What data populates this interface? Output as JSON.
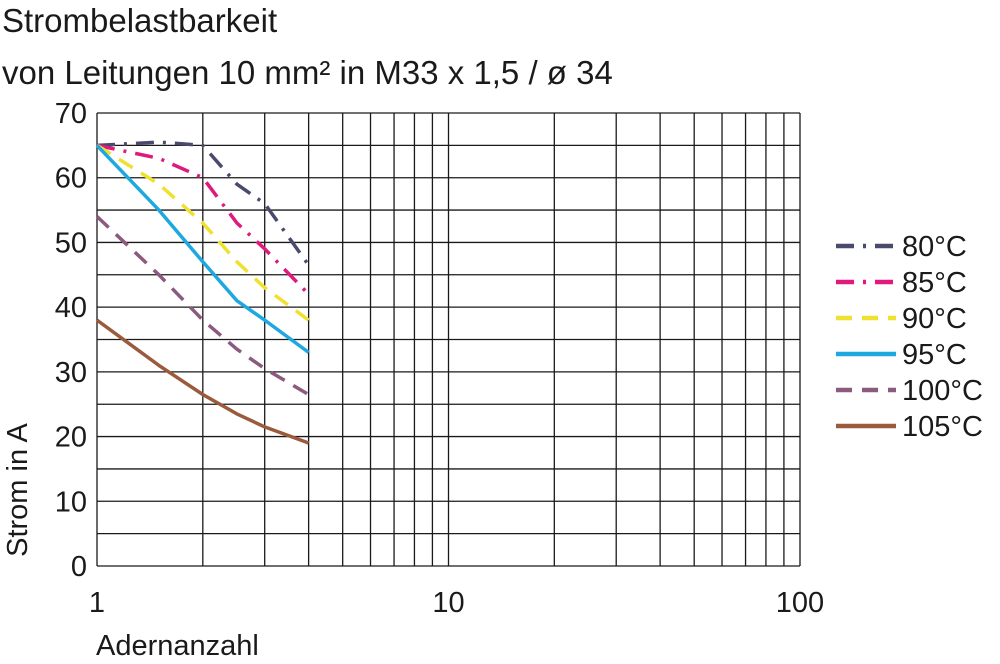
{
  "chart_data": {
    "type": "line",
    "title": "Strombelastbarkeit",
    "subtitle": "von Leitungen 10 mm² in M33 x 1,5 / ø 34",
    "xlabel": "Adernanzahl",
    "ylabel": "Strom in A",
    "xscale": "log",
    "xlim": [
      1,
      100
    ],
    "ylim": [
      0,
      70
    ],
    "xticks": [
      "1",
      "10",
      "100"
    ],
    "yticks": [
      "0",
      "10",
      "20",
      "30",
      "40",
      "50",
      "60",
      "70"
    ],
    "grid": true,
    "legend_position": "right",
    "series": [
      {
        "name": "80°C",
        "color": "#4a4a6e",
        "dash": "dash-dot",
        "x": [
          1,
          1.5,
          2,
          2.5,
          3,
          4
        ],
        "y": [
          65,
          65.5,
          65,
          59,
          56,
          46.5
        ]
      },
      {
        "name": "85°C",
        "color": "#e0197d",
        "dash": "dash-dot",
        "x": [
          1,
          1.5,
          2,
          2.5,
          3,
          4
        ],
        "y": [
          65,
          63,
          60,
          53,
          49,
          42
        ]
      },
      {
        "name": "90°C",
        "color": "#f0e030",
        "dash": "dash",
        "x": [
          1,
          1.5,
          2,
          2.5,
          3,
          4
        ],
        "y": [
          65,
          59,
          53,
          47,
          43,
          38
        ]
      },
      {
        "name": "95°C",
        "color": "#1ea8e0",
        "dash": "solid",
        "x": [
          1,
          1.5,
          2,
          2.5,
          3,
          4
        ],
        "y": [
          65,
          55,
          47,
          41,
          38,
          33
        ]
      },
      {
        "name": "100°C",
        "color": "#8c5a7e",
        "dash": "dash",
        "x": [
          1,
          1.5,
          2,
          2.5,
          3,
          4
        ],
        "y": [
          54,
          45,
          38,
          33.5,
          30.5,
          26.5
        ]
      },
      {
        "name": "105°C",
        "color": "#9c5a3c",
        "dash": "solid",
        "x": [
          1,
          1.5,
          2,
          2.5,
          3,
          4
        ],
        "y": [
          38,
          31,
          26.5,
          23.5,
          21.5,
          19
        ]
      }
    ]
  }
}
